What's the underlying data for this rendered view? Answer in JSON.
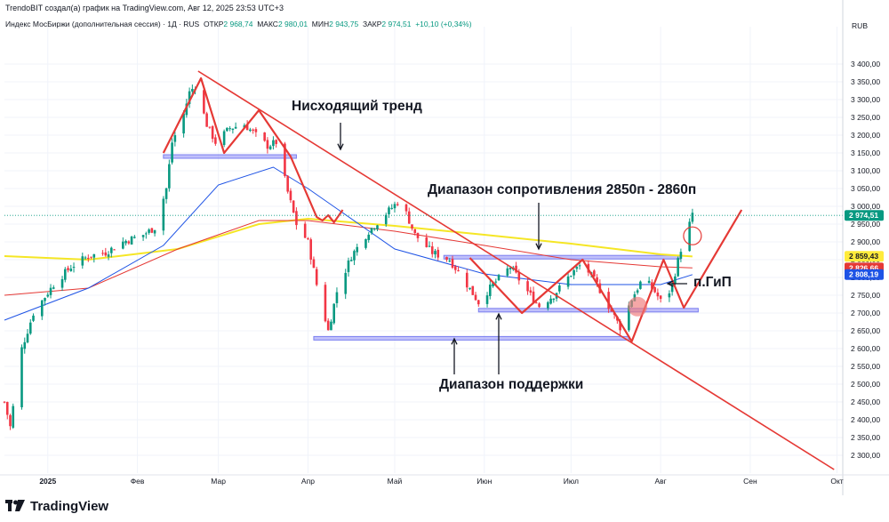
{
  "header": {
    "credit": "TrendoBIT создал(а) график на TradingView.com, Авг 12, 2025 23:53 UTC+3",
    "instrument": "Индекс МосБиржи (дополнительная сессия) · 1Д · RUS",
    "open_label": "ОТКР",
    "open_value": "2 968,74",
    "high_label": "МАКС",
    "high_value": "2 980,01",
    "low_label": "МИН",
    "low_value": "2 943,75",
    "close_label": "ЗАКР",
    "close_value": "2 974,51",
    "change": "+10,10 (+0,34%)",
    "currency": "RUB"
  },
  "chart_data": {
    "type": "candlestick",
    "y_axis": {
      "range": [
        2250,
        3480
      ],
      "ticks": [
        "3 400,00",
        "3 350,00",
        "3 300,00",
        "3 250,00",
        "3 200,00",
        "3 150,00",
        "3 100,00",
        "3 050,00",
        "3 000,00",
        "2 950,00",
        "2 900,00",
        "2 850,00",
        "2 800,00",
        "2 750,00",
        "2 700,00",
        "2 650,00",
        "2 600,00",
        "2 550,00",
        "2 500,00",
        "2 450,00",
        "2 400,00",
        "2 350,00",
        "2 300,00"
      ],
      "tick_values": [
        3400,
        3350,
        3300,
        3250,
        3200,
        3150,
        3100,
        3050,
        3000,
        2950,
        2900,
        2850,
        2800,
        2750,
        2700,
        2650,
        2600,
        2550,
        2500,
        2450,
        2400,
        2350,
        2300
      ]
    },
    "x_axis": {
      "labels": [
        "2025",
        "Фев",
        "Мар",
        "Апр",
        "Май",
        "Июн",
        "Июл",
        "Авг",
        "Сен",
        "Окт"
      ],
      "label_dates": [
        "2025-01-01",
        "2025-02-01",
        "2025-03-01",
        "2025-04-01",
        "2025-05-01",
        "2025-06-01",
        "2025-07-01",
        "2025-08-01",
        "2025-09-01",
        "2025-10-01"
      ],
      "range": [
        "2024-12-17",
        "2025-10-03"
      ]
    },
    "price_labels": [
      {
        "text": "2 974,51",
        "value": 2974.51,
        "color": "#089981"
      },
      {
        "text": "2 859,43",
        "value": 2859.43,
        "color": "#ffeb3b",
        "text_color": "#131722"
      },
      {
        "text": "2 826,66",
        "value": 2826.66,
        "color": "#e53935"
      },
      {
        "text": "2 808,19",
        "value": 2808.19,
        "color": "#1e53e5"
      }
    ],
    "close_points": [
      [
        "2024-12-17",
        2450
      ],
      [
        "2024-12-19",
        2380
      ],
      [
        "2024-12-23",
        2600
      ],
      [
        "2024-12-27",
        2700
      ],
      [
        "2025-01-03",
        2780
      ],
      [
        "2025-01-09",
        2830
      ],
      [
        "2025-01-15",
        2860
      ],
      [
        "2025-01-21",
        2870
      ],
      [
        "2025-01-27",
        2900
      ],
      [
        "2025-02-03",
        2920
      ],
      [
        "2025-02-07",
        2940
      ],
      [
        "2025-02-11",
        3050
      ],
      [
        "2025-02-13",
        3180
      ],
      [
        "2025-02-17",
        3260
      ],
      [
        "2025-02-19",
        3320
      ],
      [
        "2025-02-21",
        3340
      ],
      [
        "2025-02-25",
        3230
      ],
      [
        "2025-02-28",
        3180
      ],
      [
        "2025-03-05",
        3220
      ],
      [
        "2025-03-10",
        3230
      ],
      [
        "2025-03-14",
        3200
      ],
      [
        "2025-03-18",
        3170
      ],
      [
        "2025-03-21",
        3180
      ],
      [
        "2025-03-25",
        3040
      ],
      [
        "2025-03-28",
        2950
      ],
      [
        "2025-04-01",
        2900
      ],
      [
        "2025-04-04",
        2780
      ],
      [
        "2025-04-08",
        2650
      ],
      [
        "2025-04-11",
        2760
      ],
      [
        "2025-04-16",
        2860
      ],
      [
        "2025-04-22",
        2930
      ],
      [
        "2025-04-28",
        2980
      ],
      [
        "2025-05-03",
        3020
      ],
      [
        "2025-05-08",
        2920
      ],
      [
        "2025-05-14",
        2870
      ],
      [
        "2025-05-20",
        2850
      ],
      [
        "2025-05-26",
        2780
      ],
      [
        "2025-05-30",
        2730
      ],
      [
        "2025-06-04",
        2780
      ],
      [
        "2025-06-10",
        2830
      ],
      [
        "2025-06-16",
        2760
      ],
      [
        "2025-06-20",
        2720
      ],
      [
        "2025-06-25",
        2750
      ],
      [
        "2025-07-01",
        2810
      ],
      [
        "2025-07-05",
        2840
      ],
      [
        "2025-07-10",
        2780
      ],
      [
        "2025-07-14",
        2720
      ],
      [
        "2025-07-18",
        2660
      ],
      [
        "2025-07-22",
        2740
      ],
      [
        "2025-07-26",
        2800
      ],
      [
        "2025-07-30",
        2760
      ],
      [
        "2025-08-02",
        2720
      ],
      [
        "2025-08-05",
        2780
      ],
      [
        "2025-08-08",
        2880
      ],
      [
        "2025-08-12",
        2974
      ]
    ],
    "moving_averages": [
      {
        "color": "#f5e625",
        "points": [
          [
            "2024-12-17",
            2860
          ],
          [
            "2025-01-15",
            2850
          ],
          [
            "2025-02-15",
            2880
          ],
          [
            "2025-03-15",
            2950
          ],
          [
            "2025-04-01",
            2965
          ],
          [
            "2025-05-01",
            2945
          ],
          [
            "2025-06-01",
            2920
          ],
          [
            "2025-07-01",
            2895
          ],
          [
            "2025-08-01",
            2865
          ],
          [
            "2025-08-12",
            2859
          ]
        ]
      },
      {
        "color": "#e53935",
        "points": [
          [
            "2024-12-17",
            2750
          ],
          [
            "2025-01-15",
            2770
          ],
          [
            "2025-02-15",
            2880
          ],
          [
            "2025-03-15",
            2960
          ],
          [
            "2025-04-01",
            2960
          ],
          [
            "2025-05-01",
            2930
          ],
          [
            "2025-06-01",
            2890
          ],
          [
            "2025-07-01",
            2850
          ],
          [
            "2025-08-01",
            2830
          ],
          [
            "2025-08-12",
            2827
          ]
        ]
      },
      {
        "color": "#1e53e5",
        "points": [
          [
            "2024-12-17",
            2680
          ],
          [
            "2025-01-15",
            2770
          ],
          [
            "2025-02-10",
            2890
          ],
          [
            "2025-03-01",
            3060
          ],
          [
            "2025-03-20",
            3110
          ],
          [
            "2025-04-01",
            3050
          ],
          [
            "2025-05-01",
            2880
          ],
          [
            "2025-06-01",
            2810
          ],
          [
            "2025-07-01",
            2780
          ],
          [
            "2025-08-01",
            2780
          ],
          [
            "2025-08-12",
            2808
          ]
        ]
      }
    ],
    "zones": [
      {
        "from": "2025-02-10",
        "to": "2025-03-28",
        "low": 3136,
        "high": 3145
      },
      {
        "from": "2025-05-18",
        "to": "2025-08-08",
        "low": 2852,
        "high": 2862
      },
      {
        "from": "2025-05-30",
        "to": "2025-08-14",
        "low": 2703,
        "high": 2713
      },
      {
        "from": "2025-04-03",
        "to": "2025-07-21",
        "low": 2624,
        "high": 2634
      }
    ],
    "trend_line": {
      "from": [
        "2025-02-22",
        3380
      ],
      "to": [
        "2025-09-30",
        2260
      ],
      "color": "#e53935"
    },
    "red_pattern": [
      {
        "color": "#e53935",
        "points": [
          [
            "2025-02-10",
            3150
          ],
          [
            "2025-02-23",
            3360
          ],
          [
            "2025-03-03",
            3150
          ],
          [
            "2025-03-15",
            3270
          ],
          [
            "2025-03-26",
            3140
          ],
          [
            "2025-04-04",
            2970
          ],
          [
            "2025-04-06",
            2960
          ],
          [
            "2025-04-08",
            2975
          ],
          [
            "2025-04-10",
            2955
          ],
          [
            "2025-04-13",
            2990
          ]
        ]
      },
      {
        "color": "#e53935",
        "points": [
          [
            "2025-05-27",
            2855
          ],
          [
            "2025-06-14",
            2700
          ],
          [
            "2025-07-05",
            2850
          ],
          [
            "2025-07-22",
            2620
          ],
          [
            "2025-08-02",
            2850
          ],
          [
            "2025-08-09",
            2715
          ],
          [
            "2025-08-29",
            2990
          ]
        ]
      }
    ],
    "circles": [
      {
        "date": "2025-07-24",
        "value": 2718,
        "filled": true
      },
      {
        "date": "2025-08-12",
        "value": 2917,
        "filled": false
      }
    ],
    "annotations": [
      {
        "text": "Нисходящий тренд",
        "arrow_text": "↓"
      },
      {
        "text": "Диапазон сопротивления 2850п - 2860п"
      },
      {
        "text": "Диапазон поддержки"
      },
      {
        "text": "п.ГиП",
        "arrow_text": "←"
      }
    ]
  },
  "footer": {
    "brand": "TradingView"
  }
}
